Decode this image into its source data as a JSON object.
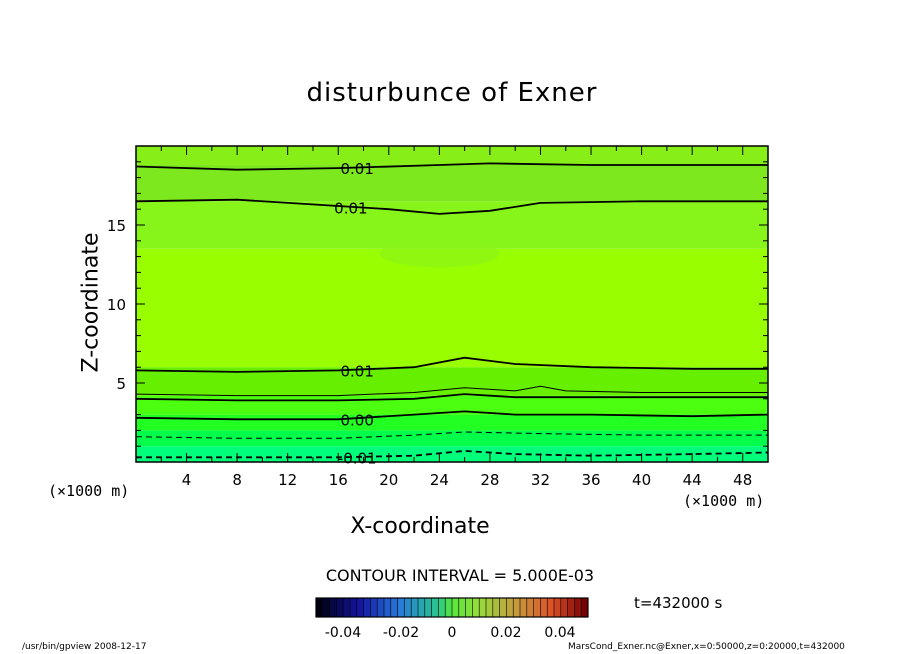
{
  "chart_data": {
    "type": "contour",
    "title": "disturbunce of Exner",
    "xlabel": "X-coordinate",
    "ylabel": "Z-coordinate",
    "x_unit": "(×1000 m)",
    "y_unit": "(×1000 m)",
    "xlim": [
      0,
      50
    ],
    "ylim": [
      0,
      20
    ],
    "x_ticks": [
      4,
      8,
      12,
      16,
      20,
      24,
      28,
      32,
      36,
      40,
      44,
      48
    ],
    "y_ticks": [
      5,
      10,
      15
    ],
    "contour_interval": "CONTOUR INTERVAL = 5.000E-03",
    "contour_labels": [
      {
        "text": "0.01",
        "x": 17.5,
        "z": 18.6
      },
      {
        "text": "0.01",
        "x": 17.0,
        "z": 16.1
      },
      {
        "text": "0.01",
        "x": 17.5,
        "z": 5.8
      },
      {
        "text": "0.00",
        "x": 17.5,
        "z": 2.7
      },
      {
        "text": "-0.01",
        "x": 17.5,
        "z": 0.3
      }
    ],
    "contours": [
      {
        "style": "solid",
        "weight": "bold",
        "points": [
          [
            0,
            18.7
          ],
          [
            8,
            18.5
          ],
          [
            16,
            18.6
          ],
          [
            24,
            18.8
          ],
          [
            28,
            18.9
          ],
          [
            36,
            18.8
          ],
          [
            44,
            18.8
          ],
          [
            50,
            18.8
          ]
        ]
      },
      {
        "style": "solid",
        "weight": "bold",
        "points": [
          [
            0,
            16.5
          ],
          [
            8,
            16.6
          ],
          [
            16,
            16.2
          ],
          [
            20,
            16.0
          ],
          [
            24,
            15.7
          ],
          [
            28,
            15.9
          ],
          [
            32,
            16.4
          ],
          [
            40,
            16.5
          ],
          [
            50,
            16.5
          ]
        ]
      },
      {
        "style": "solid",
        "weight": "bold",
        "points": [
          [
            0,
            5.8
          ],
          [
            8,
            5.7
          ],
          [
            16,
            5.8
          ],
          [
            22,
            6.0
          ],
          [
            26,
            6.6
          ],
          [
            30,
            6.2
          ],
          [
            36,
            6.0
          ],
          [
            44,
            5.9
          ],
          [
            50,
            5.9
          ]
        ]
      },
      {
        "style": "solid",
        "weight": "thin",
        "points": [
          [
            0,
            4.3
          ],
          [
            8,
            4.2
          ],
          [
            16,
            4.2
          ],
          [
            22,
            4.4
          ],
          [
            26,
            4.7
          ],
          [
            30,
            4.5
          ],
          [
            32,
            4.8
          ],
          [
            34,
            4.5
          ],
          [
            40,
            4.4
          ],
          [
            50,
            4.4
          ]
        ]
      },
      {
        "style": "solid",
        "weight": "bold",
        "points": [
          [
            0,
            4.0
          ],
          [
            8,
            3.9
          ],
          [
            16,
            3.9
          ],
          [
            22,
            4.0
          ],
          [
            26,
            4.3
          ],
          [
            30,
            4.1
          ],
          [
            36,
            4.1
          ],
          [
            50,
            4.1
          ]
        ]
      },
      {
        "style": "solid",
        "weight": "bold",
        "points": [
          [
            0,
            2.8
          ],
          [
            8,
            2.7
          ],
          [
            16,
            2.7
          ],
          [
            22,
            3.0
          ],
          [
            26,
            3.2
          ],
          [
            30,
            3.0
          ],
          [
            36,
            3.0
          ],
          [
            44,
            2.9
          ],
          [
            50,
            3.0
          ]
        ]
      },
      {
        "style": "dashed",
        "weight": "thin",
        "points": [
          [
            0,
            1.6
          ],
          [
            8,
            1.5
          ],
          [
            16,
            1.5
          ],
          [
            22,
            1.7
          ],
          [
            26,
            1.9
          ],
          [
            32,
            1.8
          ],
          [
            40,
            1.7
          ],
          [
            50,
            1.7
          ]
        ]
      },
      {
        "style": "dashed",
        "weight": "bold",
        "points": [
          [
            0,
            0.3
          ],
          [
            8,
            0.3
          ],
          [
            16,
            0.3
          ],
          [
            22,
            0.4
          ],
          [
            26,
            0.7
          ],
          [
            30,
            0.5
          ],
          [
            36,
            0.4
          ],
          [
            44,
            0.5
          ],
          [
            50,
            0.6
          ]
        ]
      }
    ],
    "fill_bands": [
      {
        "z0": 0,
        "z1": 1.0,
        "color": "#00ff7a"
      },
      {
        "z0": 1.0,
        "z1": 2.0,
        "color": "#00ff4a"
      },
      {
        "z0": 2.0,
        "z1": 3.0,
        "color": "#22ff22"
      },
      {
        "z0": 3.0,
        "z1": 4.2,
        "color": "#4cff10"
      },
      {
        "z0": 4.2,
        "z1": 6.0,
        "color": "#66f000"
      },
      {
        "z0": 6.0,
        "z1": 13.5,
        "color": "#99ff00"
      },
      {
        "z0": 13.5,
        "z1": 16.5,
        "color": "#88f51a"
      },
      {
        "z0": 16.5,
        "z1": 18.8,
        "color": "#7ee81e"
      },
      {
        "z0": 18.8,
        "z1": 20,
        "color": "#88ee18"
      }
    ],
    "colorbar": {
      "ticks": [
        "-0.04",
        "-0.02",
        "0",
        "0.02",
        "0.04"
      ]
    },
    "time_label": "t=432000 s"
  },
  "footer": {
    "left": "/usr/bin/gpview   2008-12-17",
    "right": "MarsCond_Exner.nc@Exner,x=0:50000,z=0:20000,t=432000"
  }
}
